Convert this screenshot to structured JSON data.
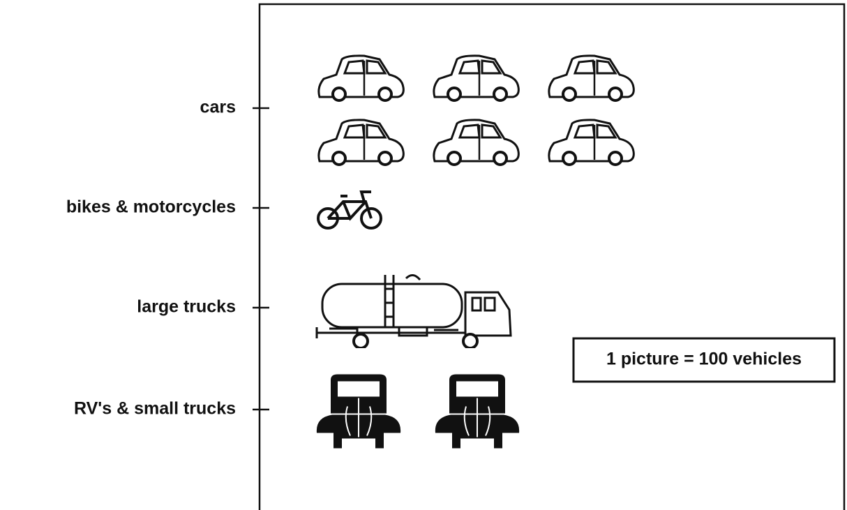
{
  "chart_data": {
    "type": "pictograph",
    "categories": [
      "cars",
      "bikes & motorcycles",
      "large trucks",
      "RV's & small trucks"
    ],
    "values": [
      6,
      1,
      1,
      2
    ],
    "key": "1 picture = 100 vehicles"
  }
}
